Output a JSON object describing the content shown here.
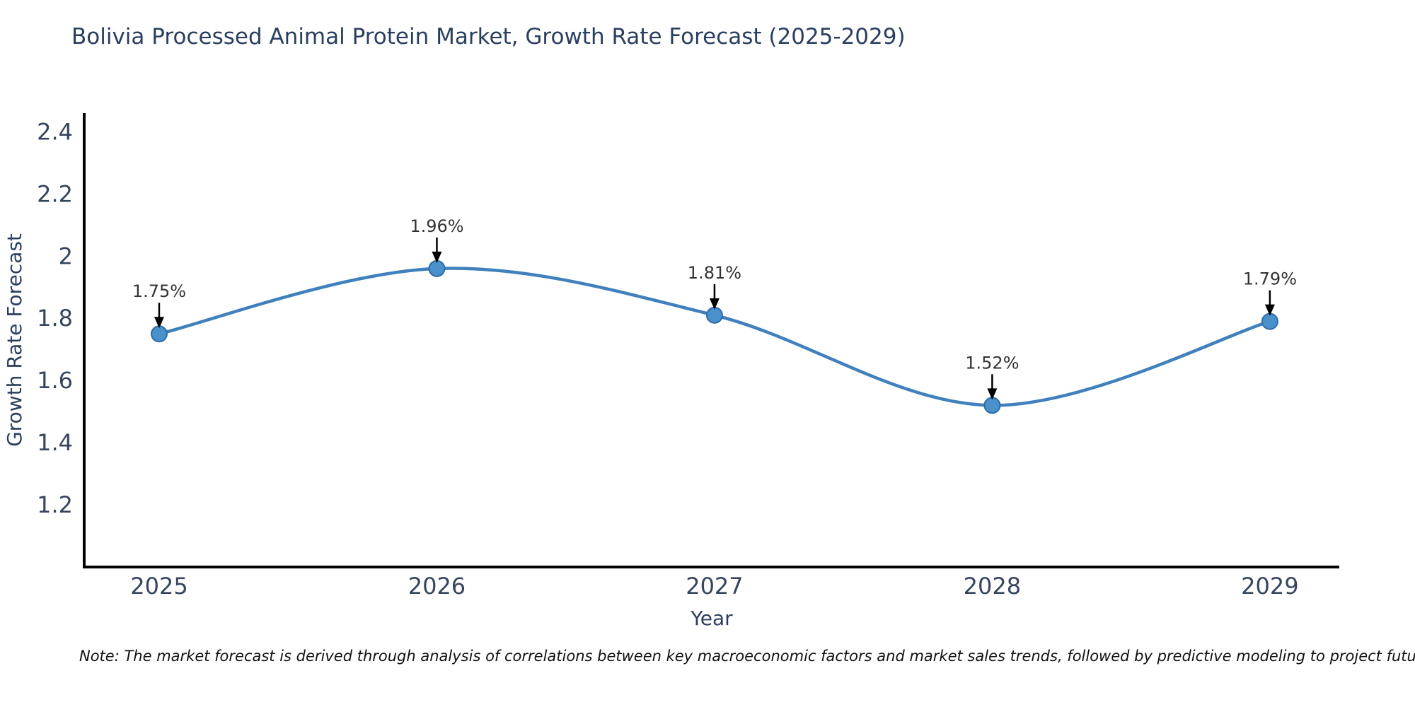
{
  "page": {
    "title": "Bolivia Processed Animal Protein Market, Growth Rate Forecast (2025-2029)",
    "note": "Note: The market forecast is derived through analysis of correlations between key macroeconomic factors and market sales trends, followed by predictive modeling to project future sales"
  },
  "chart_data": {
    "type": "line",
    "title": "Bolivia Processed Animal Protein Market, Growth Rate Forecast (2025-2029)",
    "xlabel": "Year",
    "ylabel": "Growth Rate Forecast",
    "x": [
      2025,
      2026,
      2027,
      2028,
      2029
    ],
    "series": [
      {
        "name": "Growth Rate Forecast",
        "values": [
          1.75,
          1.96,
          1.81,
          1.52,
          1.79
        ]
      }
    ],
    "point_labels": [
      "1.75%",
      "1.96%",
      "1.81%",
      "1.52%",
      "1.79%"
    ],
    "xtick_labels": [
      "2025",
      "2026",
      "2027",
      "2028",
      "2029"
    ],
    "ytick_values": [
      1.2,
      1.4,
      1.6,
      1.8,
      2.0,
      2.2,
      2.4
    ],
    "ytick_labels": [
      "1.2",
      "1.4",
      "1.6",
      "1.8",
      "2",
      "2.2",
      "2.4"
    ],
    "xlim": [
      2024.73,
      2029.25
    ],
    "ylim": [
      1.0,
      2.46
    ],
    "line_shape": "spline",
    "grid": false,
    "legend": "none",
    "colors": {
      "line": "#4080bd",
      "marker_fill": "#4a90ca",
      "marker_edge": "#2f6ba8",
      "axis_line": "#000000",
      "tick_text": "#36455e",
      "axis_title_text": "#2a3f5f",
      "title_text": "#2a3f5f",
      "annotation_text": "#333333",
      "annotation_arrow": "#000000"
    }
  }
}
